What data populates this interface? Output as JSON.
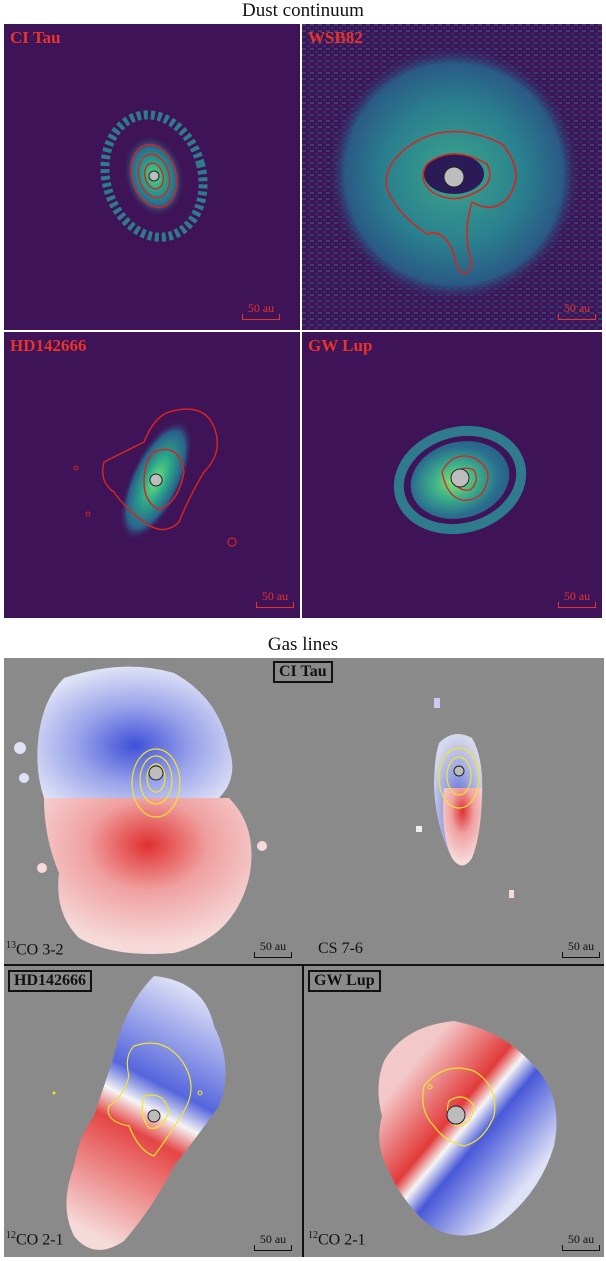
{
  "dust": {
    "title": "Dust continuum",
    "panels": [
      {
        "name": "CI Tau",
        "scale": "50 au"
      },
      {
        "name": "WSB82",
        "scale": "50 au"
      },
      {
        "name": "HD142666",
        "scale": "50 au"
      },
      {
        "name": "GW Lup",
        "scale": "50 au"
      }
    ]
  },
  "gas": {
    "title": "Gas lines",
    "panels": [
      {
        "name": "CI Tau",
        "line_iso": "13",
        "line": "CO 3-2",
        "scale": "50 au"
      },
      {
        "name": "",
        "line_iso": "",
        "line": "CS 7-6",
        "scale": "50 au"
      },
      {
        "name": "HD142666",
        "line_iso": "12",
        "line": "CO 2-1",
        "scale": "50 au"
      },
      {
        "name": "GW Lup",
        "line_iso": "12",
        "line": "CO 2-1",
        "scale": "50 au"
      }
    ]
  },
  "colors": {
    "dust_bg": "#3e1357",
    "dust_label": "#e8332b",
    "contour_dust": "#d4261e",
    "contour_gas": "#f2e52e",
    "gas_bg": "#8a8a8a",
    "blueshift": "#2e3fd6",
    "redshift": "#e02222",
    "star": "#bdbdbd"
  }
}
